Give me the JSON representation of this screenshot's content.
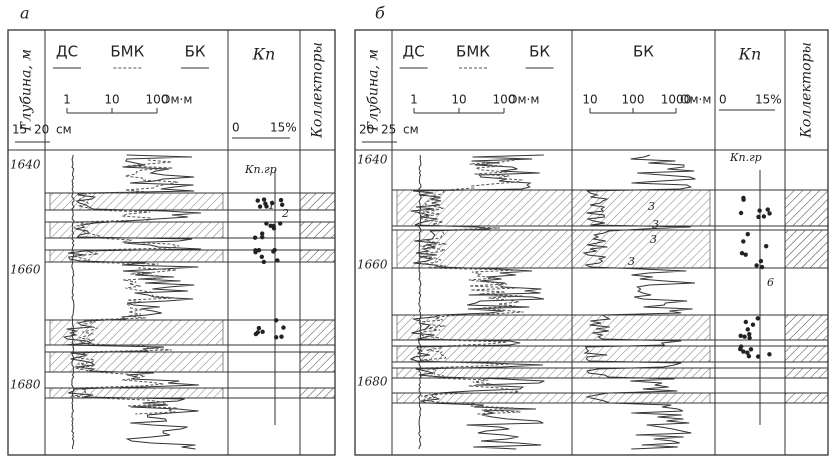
{
  "panels": [
    {
      "label": "а",
      "depth_header": "Глубина, м",
      "columns": {
        "ds": "ДС",
        "bmk": "БМК",
        "bk": "БК",
        "kp": "Кп",
        "collectors": "Коллекторы"
      },
      "resistivity_scale": [
        "1",
        "10",
        "100",
        "Ом·м"
      ],
      "caliper_scale": [
        "15",
        "20",
        "см"
      ],
      "porosity_scale": [
        "0",
        "15%"
      ],
      "depths": [
        "1640",
        "1660",
        "1680"
      ],
      "annotations": [
        "Кп.гр",
        "1",
        "2"
      ]
    },
    {
      "label": "б",
      "depth_header": "Глубина, м",
      "columns": {
        "ds": "ДС",
        "bmk": "БМК",
        "bk": "БК",
        "bk_deep": "БК",
        "kp": "Кп",
        "collectors": "Коллекторы"
      },
      "resistivity_scale": [
        "1",
        "10",
        "100",
        "Ом·м"
      ],
      "resistivity_scale_deep": [
        "10",
        "100",
        "1000",
        "Ом·м"
      ],
      "caliper_scale": [
        "20",
        "25",
        "см"
      ],
      "porosity_scale": [
        "0",
        "15%"
      ],
      "depths": [
        "1640",
        "1660",
        "1680"
      ],
      "annotations": [
        "Кп.гр",
        "3",
        "3",
        "3",
        "3",
        "6"
      ]
    }
  ]
}
